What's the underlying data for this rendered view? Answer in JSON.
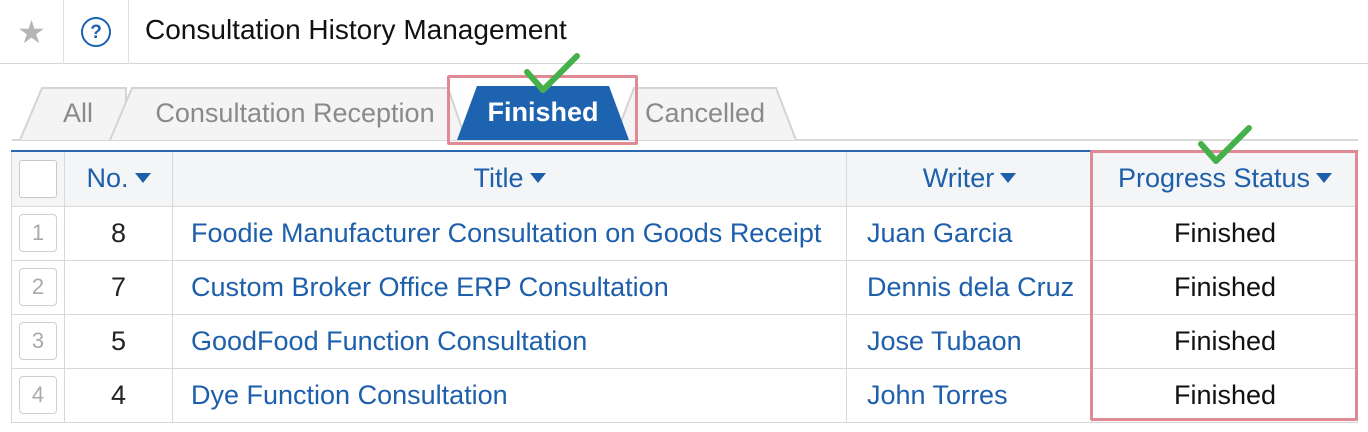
{
  "header": {
    "title": "Consultation History Management",
    "favorite_icon": "star-icon",
    "help_icon": "help-icon",
    "help_glyph": "?"
  },
  "tabs": [
    {
      "label": "All",
      "active": false
    },
    {
      "label": "Consultation Reception",
      "active": false
    },
    {
      "label": "Finished",
      "active": true
    },
    {
      "label": "Cancelled",
      "active": false
    }
  ],
  "table": {
    "columns": {
      "no": "No.",
      "title": "Title",
      "writer": "Writer",
      "status": "Progress Status"
    },
    "rows": [
      {
        "index": "1",
        "no": "8",
        "title": "Foodie Manufacturer Consultation on Goods Receipt",
        "writer": "Juan Garcia",
        "status": "Finished"
      },
      {
        "index": "2",
        "no": "7",
        "title": "Custom Broker Office ERP Consultation",
        "writer": "Dennis dela Cruz",
        "status": "Finished"
      },
      {
        "index": "3",
        "no": "5",
        "title": "GoodFood Function Consultation",
        "writer": "Jose Tubaon",
        "status": "Finished"
      },
      {
        "index": "4",
        "no": "4",
        "title": "Dye Function Consultation",
        "writer": "John Torres",
        "status": "Finished"
      }
    ]
  },
  "colors": {
    "accent_blue": "#1d5fab",
    "active_tab": "#1e63b0",
    "highlight": "#e08a93",
    "check_green": "#46b04a"
  },
  "annotations": {
    "check_icon": "check-icon"
  }
}
